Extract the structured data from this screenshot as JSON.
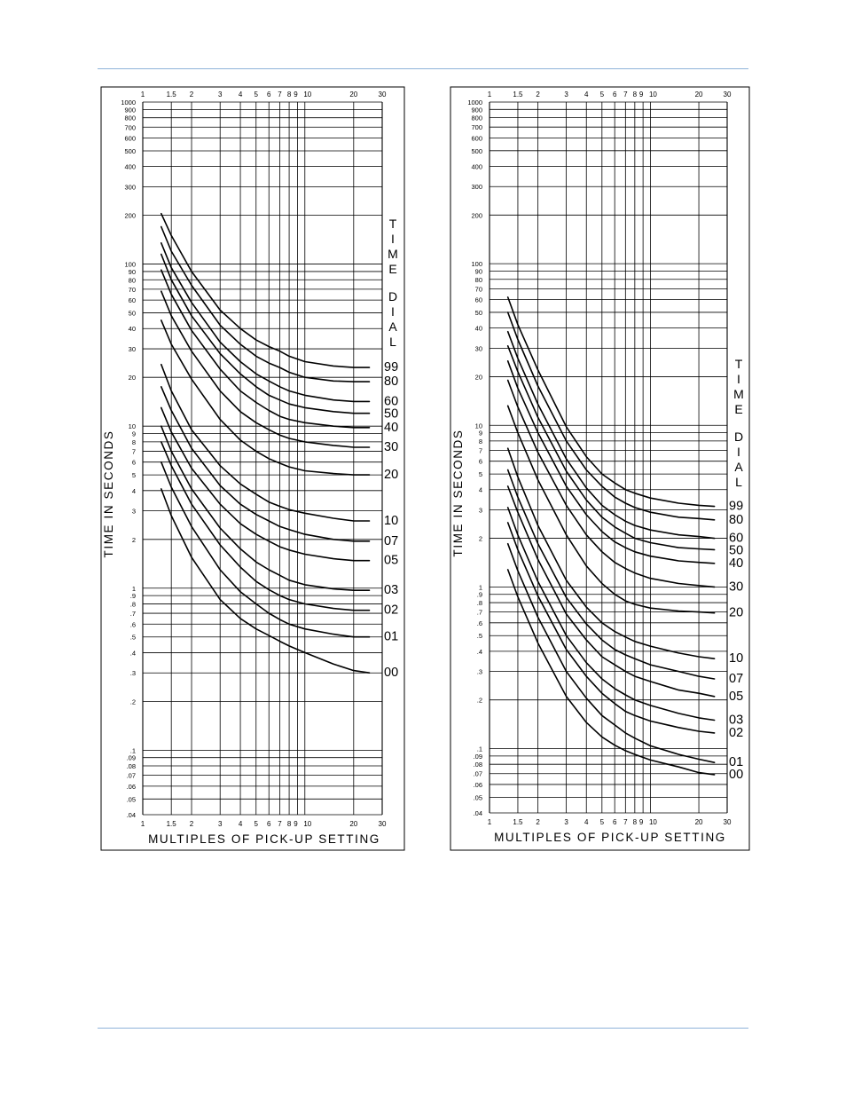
{
  "chart_data": [
    {
      "type": "line",
      "x_scale": "log",
      "y_scale": "log",
      "xlim": [
        1,
        30
      ],
      "ylim": [
        0.04,
        1000
      ],
      "x_ticks": [
        "1",
        "1.5",
        "2",
        "3",
        "4",
        "5",
        "6",
        "7",
        "8",
        "9",
        "10",
        "20",
        "30"
      ],
      "y_ticks": [
        "1000",
        "900",
        "800",
        "700",
        "600",
        "500",
        "400",
        "300",
        "200",
        "100",
        "90",
        "80",
        "70",
        "60",
        "50",
        "40",
        "30",
        "20",
        "10",
        "9",
        "8",
        "7",
        "6",
        "5",
        "4",
        "3",
        "2",
        "1",
        ".9",
        ".8",
        ".7",
        ".6",
        ".5",
        ".4",
        ".3",
        ".2",
        ".1",
        ".09",
        ".08",
        ".07",
        ".06",
        ".05",
        ".04"
      ],
      "xlabel": "MULTIPLES OF PICK-UP SETTING",
      "ylabel": "TIME IN SECONDS",
      "curve_group_title": [
        "T",
        "I",
        "M",
        "E",
        "D",
        "I",
        "A",
        "L"
      ],
      "grid": true,
      "series": [
        {
          "name": "99",
          "x": [
            1.3,
            1.5,
            2,
            3,
            4,
            5,
            6,
            7,
            8,
            10,
            15,
            20,
            25
          ],
          "y": [
            205,
            150,
            90,
            52,
            40,
            34,
            31,
            29,
            27,
            25,
            23.5,
            23,
            23
          ]
        },
        {
          "name": "80",
          "x": [
            1.3,
            1.5,
            2,
            3,
            4,
            5,
            6,
            7,
            8,
            10,
            15,
            20,
            25
          ],
          "y": [
            170,
            120,
            74,
            42,
            32,
            27,
            24.5,
            23,
            21.5,
            20,
            19,
            18.8,
            18.8
          ]
        },
        {
          "name": "60",
          "x": [
            1.3,
            1.5,
            2,
            3,
            4,
            5,
            6,
            7,
            8,
            10,
            15,
            20,
            25
          ],
          "y": [
            135,
            95,
            58,
            33,
            25,
            21,
            19,
            17.5,
            16.5,
            15.5,
            14.5,
            14.2,
            14.2
          ]
        },
        {
          "name": "50",
          "x": [
            1.3,
            1.5,
            2,
            3,
            4,
            5,
            6,
            7,
            8,
            10,
            15,
            20,
            25
          ],
          "y": [
            115,
            80,
            48,
            28,
            21,
            17.5,
            15.5,
            14.5,
            13.7,
            13,
            12.3,
            12,
            12
          ]
        },
        {
          "name": "40",
          "x": [
            1.3,
            1.5,
            2,
            3,
            4,
            5,
            6,
            7,
            8,
            10,
            15,
            20,
            25
          ],
          "y": [
            92,
            65,
            39,
            22.5,
            16.5,
            14,
            12.5,
            11.5,
            11,
            10.5,
            10,
            9.8,
            9.8
          ]
        },
        {
          "name": "30",
          "x": [
            1.3,
            1.5,
            2,
            3,
            4,
            5,
            6,
            7,
            8,
            10,
            15,
            20,
            25
          ],
          "y": [
            68,
            48,
            29,
            16.5,
            12.3,
            10.5,
            9.5,
            8.8,
            8.4,
            8,
            7.6,
            7.4,
            7.4
          ]
        },
        {
          "name": "20",
          "x": [
            1.3,
            1.5,
            2,
            3,
            4,
            5,
            6,
            7,
            8,
            10,
            15,
            20,
            25
          ],
          "y": [
            45,
            32,
            19.5,
            11,
            8.2,
            7,
            6.3,
            5.9,
            5.6,
            5.3,
            5.1,
            5,
            5
          ]
        },
        {
          "name": "10",
          "x": [
            1.3,
            1.5,
            2,
            3,
            4,
            5,
            6,
            7,
            8,
            10,
            15,
            20,
            25
          ],
          "y": [
            24,
            16.5,
            9.5,
            5.7,
            4.4,
            3.8,
            3.4,
            3.2,
            3.05,
            2.9,
            2.7,
            2.6,
            2.6
          ]
        },
        {
          "name": "07",
          "x": [
            1.3,
            1.5,
            2,
            3,
            4,
            5,
            6,
            7,
            8,
            10,
            15,
            20,
            25
          ],
          "y": [
            17.5,
            12.5,
            7.3,
            4.3,
            3.3,
            2.85,
            2.6,
            2.4,
            2.3,
            2.15,
            2.0,
            1.95,
            1.95
          ]
        },
        {
          "name": "05",
          "x": [
            1.3,
            1.5,
            2,
            3,
            4,
            5,
            6,
            7,
            8,
            10,
            15,
            20,
            25
          ],
          "y": [
            13,
            9.2,
            5.5,
            3.3,
            2.5,
            2.15,
            1.95,
            1.8,
            1.72,
            1.62,
            1.52,
            1.48,
            1.48
          ]
        },
        {
          "name": "03",
          "x": [
            1.3,
            1.5,
            2,
            3,
            4,
            5,
            6,
            7,
            8,
            10,
            15,
            20,
            25
          ],
          "y": [
            10,
            7,
            4.1,
            2.35,
            1.75,
            1.45,
            1.3,
            1.2,
            1.12,
            1.05,
            0.99,
            0.97,
            0.97
          ]
        },
        {
          "name": "02",
          "x": [
            1.3,
            1.5,
            2,
            3,
            4,
            5,
            6,
            7,
            8,
            10,
            15,
            20,
            25
          ],
          "y": [
            8,
            5.7,
            3.3,
            1.85,
            1.35,
            1.1,
            0.98,
            0.9,
            0.85,
            0.8,
            0.75,
            0.73,
            0.73
          ]
        },
        {
          "name": "01",
          "x": [
            1.3,
            1.5,
            2,
            3,
            4,
            5,
            6,
            7,
            8,
            10,
            15,
            20,
            25
          ],
          "y": [
            6,
            4.2,
            2.4,
            1.3,
            0.95,
            0.8,
            0.7,
            0.64,
            0.6,
            0.56,
            0.52,
            0.5,
            0.5
          ]
        },
        {
          "name": "00",
          "x": [
            1.3,
            1.5,
            2,
            3,
            4,
            5,
            6,
            7,
            8,
            10,
            15,
            20,
            25
          ],
          "y": [
            4.1,
            2.8,
            1.55,
            0.85,
            0.65,
            0.56,
            0.51,
            0.47,
            0.44,
            0.4,
            0.34,
            0.31,
            0.3
          ]
        }
      ]
    },
    {
      "type": "line",
      "x_scale": "log",
      "y_scale": "log",
      "xlim": [
        1,
        30
      ],
      "ylim": [
        0.04,
        1000
      ],
      "x_ticks": [
        "1",
        "1.5",
        "2",
        "3",
        "4",
        "5",
        "6",
        "7",
        "8",
        "9",
        "10",
        "20",
        "30"
      ],
      "y_ticks": [
        "1000",
        "900",
        "800",
        "700",
        "600",
        "500",
        "400",
        "300",
        "200",
        "100",
        "90",
        "80",
        "70",
        "60",
        "50",
        "40",
        "30",
        "20",
        "10",
        "9",
        "8",
        "7",
        "6",
        "5",
        "4",
        "3",
        "2",
        "1",
        ".9",
        ".8",
        ".7",
        ".6",
        ".5",
        ".4",
        ".3",
        ".2",
        ".1",
        ".09",
        ".08",
        ".07",
        ".06",
        ".05",
        ".04"
      ],
      "xlabel": "MULTIPLES OF PICK-UP SETTING",
      "ylabel": "TIME IN SECONDS",
      "curve_group_title": [
        "T",
        "I",
        "M",
        "E",
        "D",
        "I",
        "A",
        "L"
      ],
      "grid": true,
      "series": [
        {
          "name": "99",
          "x": [
            1.3,
            1.5,
            2,
            3,
            4,
            5,
            6,
            7,
            8,
            10,
            15,
            20,
            25
          ],
          "y": [
            62,
            42,
            22,
            9.8,
            6.4,
            5.0,
            4.4,
            4.0,
            3.8,
            3.55,
            3.3,
            3.2,
            3.15
          ]
        },
        {
          "name": "80",
          "x": [
            1.3,
            1.5,
            2,
            3,
            4,
            5,
            6,
            7,
            8,
            10,
            15,
            20,
            25
          ],
          "y": [
            50,
            34,
            17.5,
            8.0,
            5.3,
            4.2,
            3.6,
            3.3,
            3.1,
            2.9,
            2.7,
            2.65,
            2.6
          ]
        },
        {
          "name": "60",
          "x": [
            1.3,
            1.5,
            2,
            3,
            4,
            5,
            6,
            7,
            8,
            10,
            15,
            20,
            25
          ],
          "y": [
            38,
            26,
            13.5,
            6.2,
            4.1,
            3.2,
            2.8,
            2.55,
            2.4,
            2.25,
            2.1,
            2.05,
            2.0
          ]
        },
        {
          "name": "50",
          "x": [
            1.3,
            1.5,
            2,
            3,
            4,
            5,
            6,
            7,
            8,
            10,
            15,
            20,
            25
          ],
          "y": [
            31,
            21.5,
            11.2,
            5.2,
            3.45,
            2.7,
            2.35,
            2.15,
            2.0,
            1.88,
            1.75,
            1.72,
            1.7
          ]
        },
        {
          "name": "40",
          "x": [
            1.3,
            1.5,
            2,
            3,
            4,
            5,
            6,
            7,
            8,
            10,
            15,
            20,
            25
          ],
          "y": [
            25,
            17,
            9.0,
            4.2,
            2.8,
            2.2,
            1.9,
            1.75,
            1.65,
            1.55,
            1.45,
            1.42,
            1.4
          ]
        },
        {
          "name": "30",
          "x": [
            1.3,
            1.5,
            2,
            3,
            4,
            5,
            6,
            7,
            8,
            10,
            15,
            20,
            25
          ],
          "y": [
            19,
            13,
            6.8,
            3.2,
            2.1,
            1.65,
            1.42,
            1.3,
            1.22,
            1.13,
            1.05,
            1.02,
            1.0
          ]
        },
        {
          "name": "20",
          "x": [
            1.3,
            1.5,
            2,
            3,
            4,
            5,
            6,
            7,
            8,
            10,
            15,
            20,
            25
          ],
          "y": [
            13.2,
            9.0,
            4.6,
            2.1,
            1.35,
            1.05,
            0.9,
            0.82,
            0.78,
            0.74,
            0.71,
            0.7,
            0.69
          ]
        },
        {
          "name": "10",
          "x": [
            1.3,
            1.5,
            2,
            3,
            4,
            5,
            6,
            7,
            8,
            10,
            15,
            20,
            25
          ],
          "y": [
            7.2,
            4.8,
            2.4,
            1.1,
            0.75,
            0.6,
            0.53,
            0.49,
            0.46,
            0.43,
            0.39,
            0.37,
            0.36
          ]
        },
        {
          "name": "07",
          "x": [
            1.3,
            1.5,
            2,
            3,
            4,
            5,
            6,
            7,
            8,
            10,
            15,
            20,
            25
          ],
          "y": [
            5.3,
            3.6,
            1.85,
            0.86,
            0.59,
            0.47,
            0.41,
            0.38,
            0.36,
            0.33,
            0.3,
            0.28,
            0.27
          ]
        },
        {
          "name": "05",
          "x": [
            1.3,
            1.5,
            2,
            3,
            4,
            5,
            6,
            7,
            8,
            10,
            15,
            20,
            25
          ],
          "y": [
            4.2,
            2.9,
            1.48,
            0.68,
            0.47,
            0.37,
            0.33,
            0.3,
            0.28,
            0.26,
            0.23,
            0.22,
            0.21
          ]
        },
        {
          "name": "03",
          "x": [
            1.3,
            1.5,
            2,
            3,
            4,
            5,
            6,
            7,
            8,
            10,
            15,
            20,
            25
          ],
          "y": [
            3.1,
            2.1,
            1.08,
            0.5,
            0.34,
            0.27,
            0.235,
            0.215,
            0.2,
            0.185,
            0.165,
            0.155,
            0.15
          ]
        },
        {
          "name": "02",
          "x": [
            1.3,
            1.5,
            2,
            3,
            4,
            5,
            6,
            7,
            8,
            10,
            15,
            20,
            25
          ],
          "y": [
            2.5,
            1.7,
            0.88,
            0.41,
            0.28,
            0.22,
            0.19,
            0.17,
            0.16,
            0.148,
            0.135,
            0.128,
            0.125
          ]
        },
        {
          "name": "01",
          "x": [
            1.3,
            1.5,
            2,
            3,
            4,
            5,
            6,
            7,
            8,
            10,
            15,
            20,
            25
          ],
          "y": [
            1.85,
            1.26,
            0.65,
            0.3,
            0.205,
            0.16,
            0.14,
            0.125,
            0.116,
            0.104,
            0.092,
            0.086,
            0.082
          ]
        },
        {
          "name": "00",
          "x": [
            1.3,
            1.5,
            2,
            3,
            4,
            5,
            6,
            7,
            8,
            10,
            15,
            20,
            25
          ],
          "y": [
            1.28,
            0.87,
            0.45,
            0.21,
            0.145,
            0.118,
            0.105,
            0.097,
            0.092,
            0.085,
            0.077,
            0.071,
            0.069
          ]
        }
      ]
    }
  ]
}
